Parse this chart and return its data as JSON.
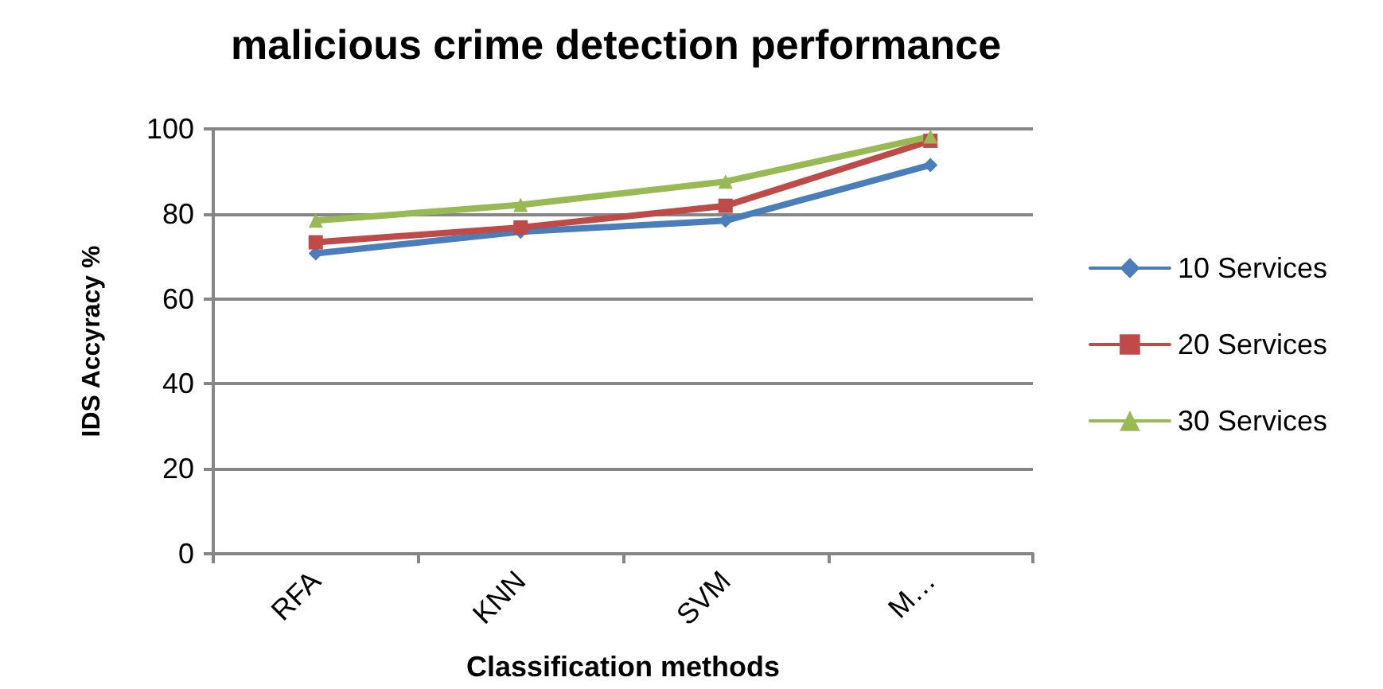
{
  "chart_data": {
    "type": "line",
    "title": "malicious crime detection performance",
    "xlabel": "Classification methods",
    "ylabel": "IDS Accyracy %",
    "categories": [
      "RFA",
      "KNN",
      "SVM",
      "M…"
    ],
    "series": [
      {
        "name": "10 Services",
        "color": "#4a7ebb",
        "values": [
          70.7,
          75.8,
          78.4,
          91.5
        ],
        "marker": "diamond"
      },
      {
        "name": "20 Services",
        "color": "#be4b48",
        "values": [
          73.3,
          76.8,
          81.9,
          97.2
        ],
        "marker": "square"
      },
      {
        "name": "30 Services",
        "color": "#98b954",
        "values": [
          78.4,
          82.1,
          87.6,
          98.2
        ],
        "marker": "triangle"
      }
    ],
    "ylim": [
      0,
      100
    ],
    "yticks": [
      0,
      20,
      40,
      60,
      80,
      100
    ],
    "grid": "y",
    "legend": "right",
    "line_style": "solid"
  }
}
